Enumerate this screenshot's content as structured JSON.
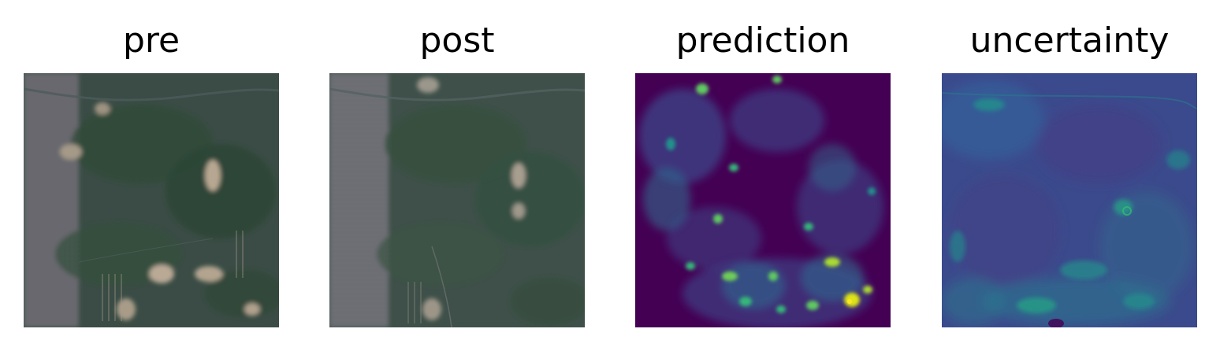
{
  "figure": {
    "panels": [
      {
        "key": "pre",
        "title": "pre",
        "kind": "satellite",
        "colormap": "rgb"
      },
      {
        "key": "post",
        "title": "post",
        "kind": "satellite",
        "colormap": "rgb"
      },
      {
        "key": "prediction",
        "title": "prediction",
        "kind": "heatmap",
        "colormap": "viridis"
      },
      {
        "key": "uncertainty",
        "title": "uncertainty",
        "kind": "heatmap",
        "colormap": "viridis"
      }
    ]
  },
  "colors": {
    "background": "#ffffff",
    "title_text": "#000000",
    "satellite_base": "#3b4d47",
    "satellite_urban": "#6d6b73",
    "satellite_vegetation": "#2f4a3a",
    "satellite_bare": "#b8a894",
    "viridis_low": "#440154",
    "viridis_mid": "#31688e",
    "viridis_midhigh": "#35b779",
    "viridis_high": "#fde725"
  }
}
